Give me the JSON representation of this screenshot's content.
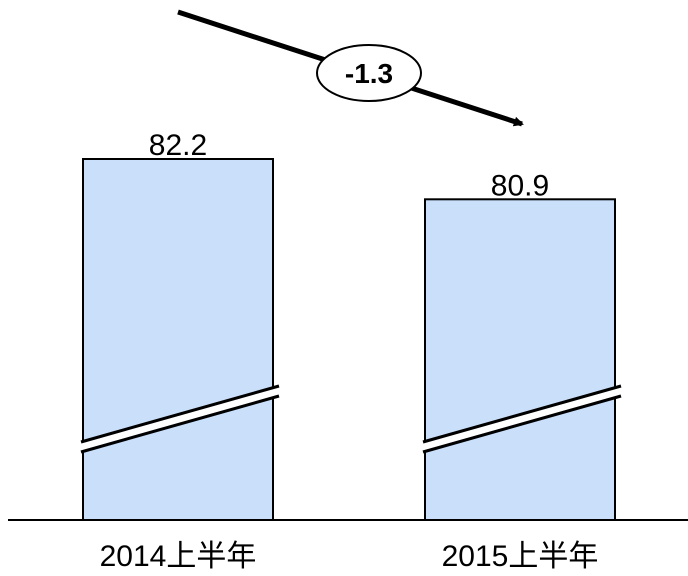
{
  "chart_data": {
    "type": "bar",
    "categories": [
      "2014上半年",
      "2015上半年"
    ],
    "values": [
      82.2,
      80.9
    ],
    "value_labels": [
      "82.2",
      "80.9"
    ],
    "change_label": "-1.3",
    "axis_break": true,
    "colors": {
      "bar_fill": "#c9dffa",
      "bar_stroke": "#000000"
    },
    "title": "",
    "xlabel": "",
    "ylabel": ""
  }
}
